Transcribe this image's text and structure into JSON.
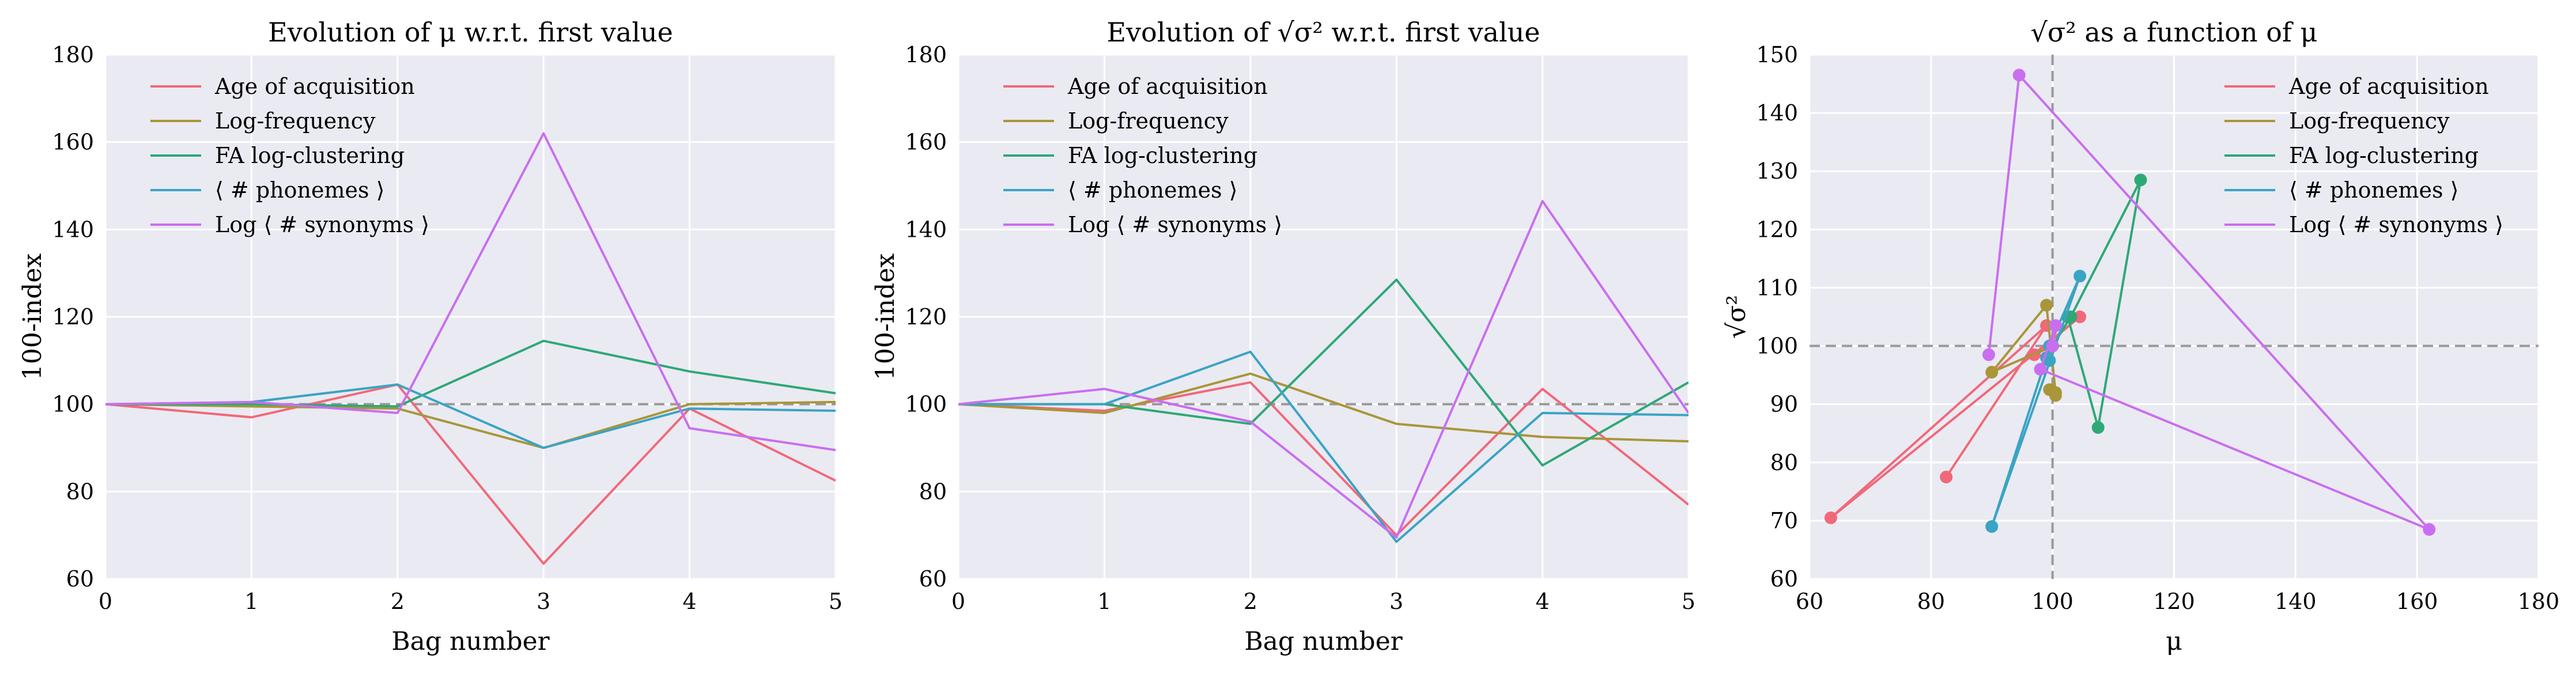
{
  "chart_data": [
    {
      "type": "line",
      "title": "Evolution of μ w.r.t. first value",
      "xlabel": "Bag number",
      "ylabel": "100-index",
      "xlim": [
        0,
        5
      ],
      "ylim": [
        60,
        180
      ],
      "xticks": [
        0,
        1,
        2,
        3,
        4,
        5
      ],
      "yticks": [
        60,
        80,
        100,
        120,
        140,
        160,
        180
      ],
      "grid": true,
      "legend_position": "top-left",
      "reference_line": {
        "y": 100,
        "style": "dashed",
        "color": "#999999"
      },
      "x": [
        0,
        1,
        2,
        3,
        4,
        5
      ],
      "series": [
        {
          "name": "Age of acquisition",
          "color": "#f0697a",
          "values": [
            100,
            97,
            104.5,
            63.5,
            99,
            82.5
          ]
        },
        {
          "name": "Log-frequency",
          "color": "#a89639",
          "values": [
            100,
            99.5,
            99,
            90,
            100,
            100.5
          ]
        },
        {
          "name": "FA log-clustering",
          "color": "#2ea877",
          "values": [
            100,
            100,
            99.5,
            114.5,
            107.5,
            102.5
          ]
        },
        {
          "name": "⟨ # phonemes ⟩",
          "color": "#3aa4c4",
          "values": [
            100,
            100.5,
            104.5,
            90,
            99,
            98.5
          ]
        },
        {
          "name": "Log ⟨ # synonyms ⟩",
          "color": "#c96ef0",
          "values": [
            100,
            100.5,
            98,
            162,
            94.5,
            89.5
          ]
        }
      ]
    },
    {
      "type": "line",
      "title": "Evolution of √σ² w.r.t. first value",
      "xlabel": "Bag number",
      "ylabel": "100-index",
      "xlim": [
        0,
        5
      ],
      "ylim": [
        60,
        180
      ],
      "xticks": [
        0,
        1,
        2,
        3,
        4,
        5
      ],
      "yticks": [
        60,
        80,
        100,
        120,
        140,
        160,
        180
      ],
      "grid": true,
      "legend_position": "top-left",
      "reference_line": {
        "y": 100,
        "style": "dashed",
        "color": "#999999"
      },
      "x": [
        0,
        1,
        2,
        3,
        4,
        5
      ],
      "series": [
        {
          "name": "Age of acquisition",
          "color": "#f0697a",
          "values": [
            100,
            98.5,
            105,
            70,
            103.5,
            77
          ]
        },
        {
          "name": "Log-frequency",
          "color": "#a89639",
          "values": [
            100,
            98,
            107,
            95.5,
            92.5,
            91.5
          ]
        },
        {
          "name": "FA log-clustering",
          "color": "#2ea877",
          "values": [
            100,
            100,
            95.5,
            128.5,
            86,
            105
          ]
        },
        {
          "name": "⟨ # phonemes ⟩",
          "color": "#3aa4c4",
          "values": [
            100,
            100,
            112,
            68.5,
            98,
            97.5
          ]
        },
        {
          "name": "Log ⟨ # synonyms ⟩",
          "color": "#c96ef0",
          "values": [
            100,
            103.5,
            96,
            69.5,
            146.5,
            98
          ]
        }
      ]
    },
    {
      "type": "scatter",
      "title": "√σ² as a function of μ",
      "xlabel": "μ",
      "ylabel": "√σ²",
      "xlim": [
        60,
        180
      ],
      "ylim": [
        60,
        150
      ],
      "xticks": [
        60,
        80,
        100,
        120,
        140,
        160,
        180
      ],
      "yticks": [
        60,
        70,
        80,
        90,
        100,
        110,
        120,
        130,
        140,
        150
      ],
      "grid": true,
      "legend_position": "top-right",
      "reference_lines": [
        {
          "x": 100,
          "style": "dashed",
          "color": "#999999"
        },
        {
          "y": 100,
          "style": "dashed",
          "color": "#999999"
        }
      ],
      "series": [
        {
          "name": "Age of acquisition",
          "color": "#f0697a",
          "points": [
            [
              100,
              100
            ],
            [
              97,
              98.5
            ],
            [
              104.5,
              105
            ],
            [
              63.5,
              70.5
            ],
            [
              99,
              103.5
            ],
            [
              82.5,
              77.5
            ]
          ]
        },
        {
          "name": "Log-frequency",
          "color": "#a89639",
          "points": [
            [
              100,
              100
            ],
            [
              90,
              95.5
            ],
            [
              99,
              107
            ],
            [
              100.5,
              92
            ],
            [
              99.5,
              92.5
            ],
            [
              100.5,
              91.5
            ]
          ]
        },
        {
          "name": "FA log-clustering",
          "color": "#2ea877",
          "points": [
            [
              100,
              100
            ],
            [
              100,
              100
            ],
            [
              103,
              105
            ],
            [
              114.5,
              128.5
            ],
            [
              107.5,
              86
            ],
            [
              102.5,
              105
            ]
          ]
        },
        {
          "name": "⟨ # phonemes ⟩",
          "color": "#3aa4c4",
          "points": [
            [
              100,
              100
            ],
            [
              99.5,
              100
            ],
            [
              104.5,
              112
            ],
            [
              90,
              69
            ],
            [
              99,
              98
            ],
            [
              99.5,
              97.5
            ]
          ]
        },
        {
          "name": "Log ⟨ # synonyms ⟩",
          "color": "#c96ef0",
          "points": [
            [
              100,
              100
            ],
            [
              100.5,
              103.5
            ],
            [
              98,
              96
            ],
            [
              162,
              68.5
            ],
            [
              94.5,
              146.5
            ],
            [
              89.5,
              98.5
            ]
          ]
        }
      ]
    }
  ]
}
